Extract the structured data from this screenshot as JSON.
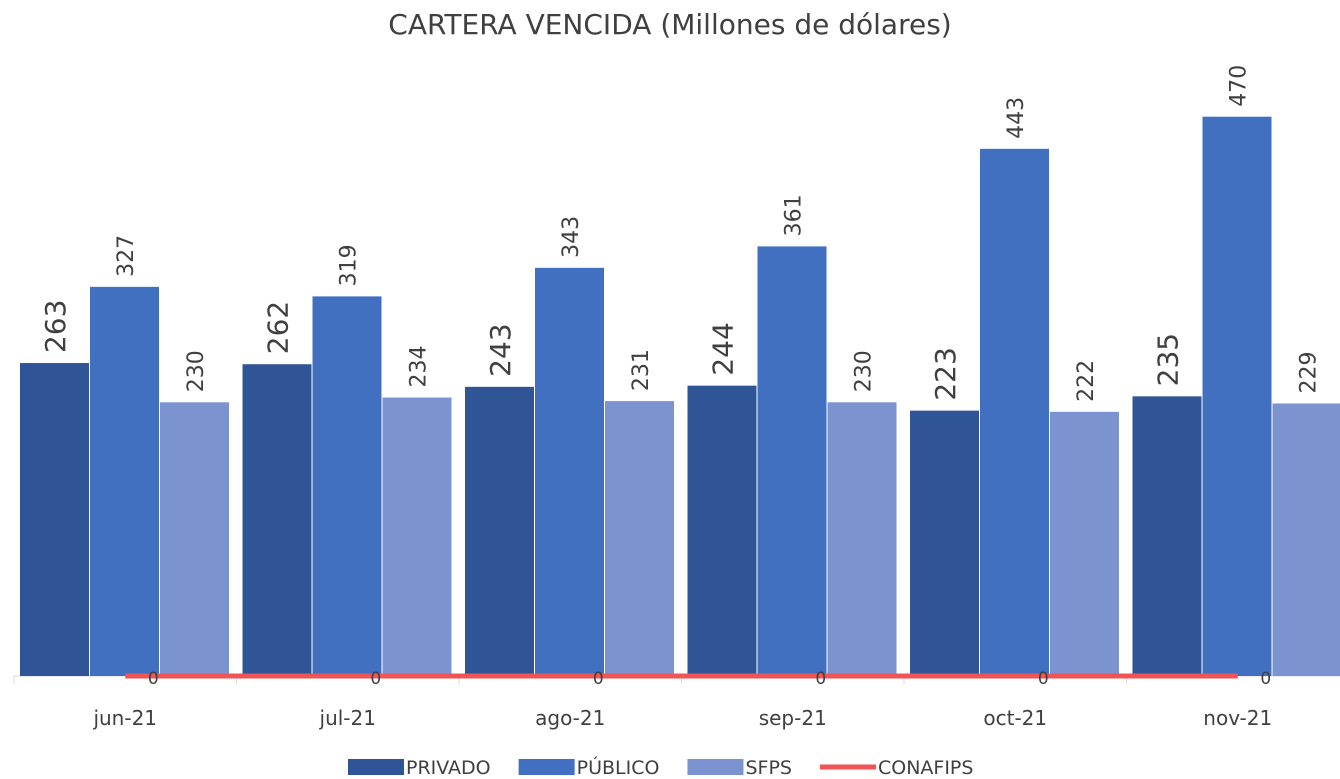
{
  "chart_data": {
    "type": "bar",
    "title": "CARTERA VENCIDA (Millones de dólares)",
    "categories": [
      "jun-21",
      "jul-21",
      "ago-21",
      "sep-21",
      "oct-21",
      "nov-21"
    ],
    "series": [
      {
        "name": "PRIVADO",
        "color": "#2f5597",
        "values": [
          263,
          262,
          243,
          244,
          223,
          235
        ]
      },
      {
        "name": "PÚBLICO",
        "color": "#4170c0",
        "values": [
          327,
          319,
          343,
          361,
          443,
          470
        ]
      },
      {
        "name": "SFPS",
        "color": "#7b93cf",
        "values": [
          230,
          234,
          231,
          230,
          222,
          229
        ]
      },
      {
        "name": "CONAFIPS",
        "type": "line",
        "color": "#f05454",
        "values": [
          0,
          0,
          0,
          0,
          0,
          0
        ]
      }
    ],
    "ylim": [
      0,
      500
    ]
  }
}
